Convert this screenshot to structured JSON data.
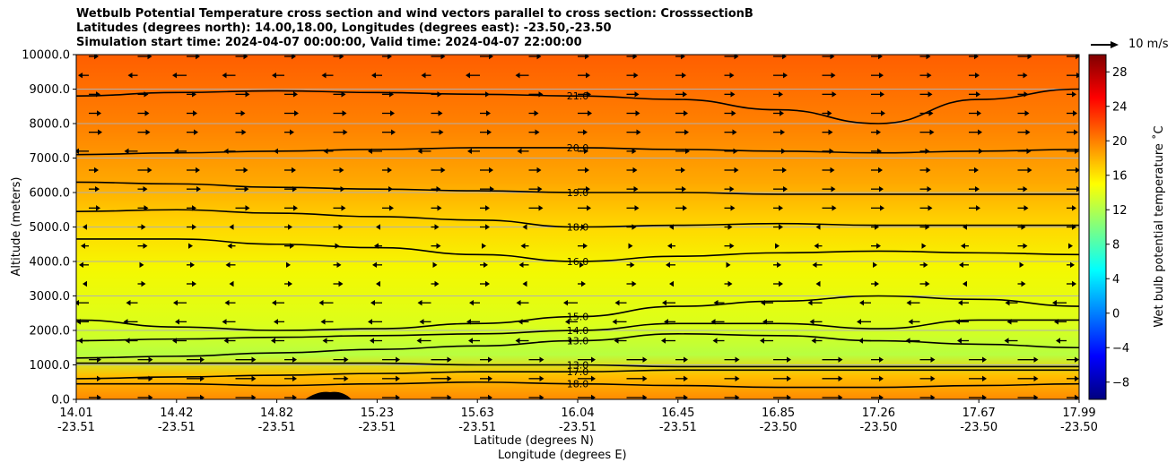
{
  "chart_data": {
    "type": "heatmap",
    "title_lines": [
      "Wetbulb Potential Temperature cross section and wind vectors parallel to cross section: CrosssectionB",
      "Latitudes (degrees north): 14.00,18.00, Longitudes (degrees east): -23.50,-23.50",
      "Simulation start time: 2024-04-07 00:00:00, Valid time: 2024-04-07 22:00:00"
    ],
    "ylabel": "Altitude (meters)",
    "xlabel_lat": "Latitude (degrees N)",
    "xlabel_lon": "Longitude (degrees E)",
    "ylim": [
      0,
      10000
    ],
    "yticks": [
      "0.0",
      "1000.0",
      "2000.0",
      "3000.0",
      "4000.0",
      "5000.0",
      "6000.0",
      "7000.0",
      "8000.0",
      "9000.0",
      "10000.0"
    ],
    "xticks": [
      {
        "lat": "14.01",
        "lon": "-23.51"
      },
      {
        "lat": "14.42",
        "lon": "-23.51"
      },
      {
        "lat": "14.82",
        "lon": "-23.51"
      },
      {
        "lat": "15.23",
        "lon": "-23.51"
      },
      {
        "lat": "15.63",
        "lon": "-23.51"
      },
      {
        "lat": "16.04",
        "lon": "-23.51"
      },
      {
        "lat": "16.45",
        "lon": "-23.51"
      },
      {
        "lat": "16.85",
        "lon": "-23.50"
      },
      {
        "lat": "17.26",
        "lon": "-23.50"
      },
      {
        "lat": "17.67",
        "lon": "-23.50"
      },
      {
        "lat": "17.99",
        "lon": "-23.50"
      }
    ],
    "grid": "horizontal",
    "colorbar": {
      "label": "Wet bulb potential temperature ˚C",
      "min": -10,
      "max": 30,
      "ticks": [
        "-8",
        "-4",
        "0",
        "4",
        "8",
        "12",
        "16",
        "20",
        "24",
        "28"
      ],
      "colormap": "jet"
    },
    "quiver_key": {
      "label": "10 m/s",
      "speed": 10
    },
    "contours": [
      {
        "label": "21.0",
        "heights": [
          8800,
          8900,
          8950,
          8900,
          8850,
          8800,
          8700,
          8400,
          8000,
          8700,
          9000
        ]
      },
      {
        "label": "20.0",
        "heights": [
          7100,
          7150,
          7200,
          7250,
          7300,
          7300,
          7250,
          7200,
          7150,
          7200,
          7250
        ]
      },
      {
        "label": "19.0",
        "heights": [
          6300,
          6250,
          6150,
          6100,
          6050,
          6000,
          6000,
          5950,
          5950,
          5950,
          5950
        ]
      },
      {
        "label": "18.0",
        "heights": [
          5450,
          5500,
          5400,
          5300,
          5200,
          5000,
          5050,
          5100,
          5050,
          5050,
          5050
        ]
      },
      {
        "label": "16.0",
        "heights": [
          4650,
          4650,
          4500,
          4400,
          4200,
          4000,
          4150,
          4250,
          4300,
          4250,
          4200
        ]
      },
      {
        "label": "15.0",
        "heights": [
          2300,
          2100,
          2000,
          2050,
          2200,
          2400,
          2700,
          2850,
          3000,
          2900,
          2700
        ]
      },
      {
        "label": "14.0",
        "heights": [
          1700,
          1750,
          1800,
          1850,
          1900,
          2000,
          2200,
          2200,
          2050,
          2300,
          2300
        ]
      },
      {
        "label": "13.0",
        "heights": [
          1200,
          1250,
          1350,
          1450,
          1550,
          1700,
          1900,
          1850,
          1700,
          1600,
          1500
        ]
      },
      {
        "label": "13.0",
        "heights": [
          1050,
          1050,
          1050,
          1050,
          1000,
          1000,
          950,
          950,
          950,
          950,
          950
        ]
      },
      {
        "label": "17.0",
        "heights": [
          600,
          650,
          700,
          750,
          800,
          800,
          850,
          850,
          850,
          850,
          850
        ]
      },
      {
        "label": "18.0",
        "heights": [
          450,
          450,
          400,
          450,
          500,
          450,
          400,
          350,
          350,
          400,
          450
        ]
      }
    ]
  }
}
